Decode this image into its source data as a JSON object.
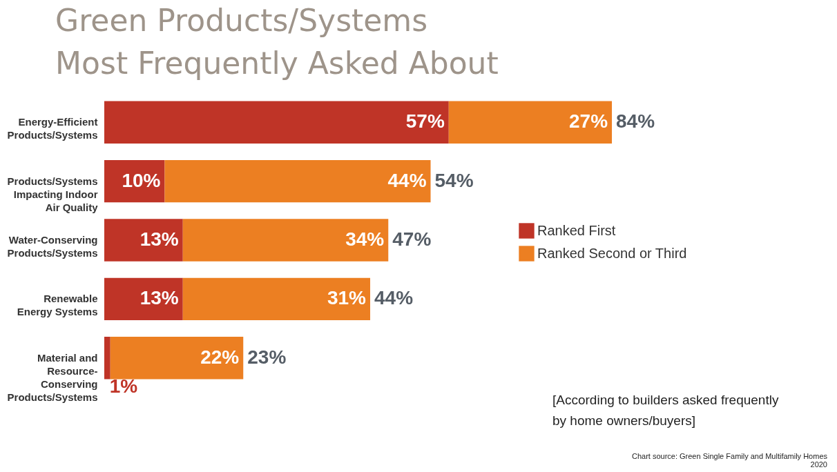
{
  "chart_data": {
    "type": "bar",
    "orientation": "horizontal",
    "stacked": true,
    "title": "Green Products/Systems\nMost Frequently Asked About",
    "categories": [
      "Energy-Efficient\nProducts/Systems",
      "Products/Systems\nImpacting Indoor\nAir Quality",
      "Water-Conserving\nProducts/Systems",
      "Renewable\nEnergy Systems",
      "Material and\nResource-\nConserving\nProducts/Systems"
    ],
    "series": [
      {
        "name": "Ranked First",
        "color": "#bf3427",
        "values": [
          57,
          10,
          13,
          13,
          1
        ],
        "value_labels": [
          "57%",
          "10%",
          "13%",
          "13%",
          "1%"
        ]
      },
      {
        "name": "Ranked Second or Third",
        "color": "#ec7f22",
        "values": [
          27,
          44,
          34,
          31,
          22
        ],
        "value_labels": [
          "27%",
          "44%",
          "34%",
          "31%",
          "22%"
        ]
      }
    ],
    "totals": [
      "84%",
      "54%",
      "47%",
      "44%",
      "23%"
    ],
    "legend": "right",
    "annotations": [
      "[According to builders asked frequently\nby home owners/buyers]",
      "Chart source: Green Single Family and Multifamily Homes 2020"
    ]
  }
}
